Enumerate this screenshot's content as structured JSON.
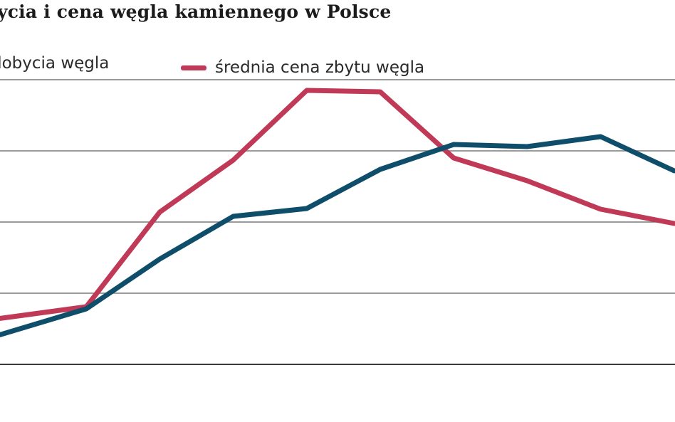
{
  "chart_data": {
    "type": "line",
    "title": "ycia i cena węgla kamiennego w Polsce",
    "legend_placement": "top",
    "grid": true,
    "series": [
      {
        "name": "dobycia węgla",
        "color": "#0e4e6a",
        "values": [
          0.47,
          0.78,
          1.48,
          2.08,
          2.19,
          2.74,
          3.09,
          3.06,
          3.2,
          2.72
        ]
      },
      {
        "name": "średnia cena zbytu węgla",
        "color": "#c03a58",
        "values": [
          0.67,
          0.81,
          2.14,
          2.87,
          3.85,
          3.83,
          2.9,
          2.58,
          2.18,
          1.98
        ]
      }
    ]
  }
}
